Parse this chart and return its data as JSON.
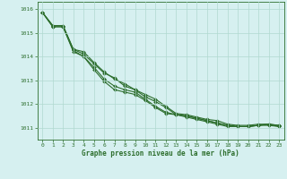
{
  "background_color": "#d6f0f0",
  "grid_color": "#b0d8d0",
  "line_color": "#2d6e2d",
  "xlabel": "Graphe pression niveau de la mer (hPa)",
  "ylim": [
    1010.5,
    1016.3
  ],
  "xlim": [
    -0.5,
    23.5
  ],
  "yticks": [
    1011,
    1012,
    1013,
    1014,
    1015,
    1016
  ],
  "xticks": [
    0,
    1,
    2,
    3,
    4,
    5,
    6,
    7,
    8,
    9,
    10,
    11,
    12,
    13,
    14,
    15,
    16,
    17,
    18,
    19,
    20,
    21,
    22,
    23
  ],
  "series": [
    [
      1015.85,
      1015.3,
      1015.3,
      1014.3,
      1014.2,
      1013.75,
      1013.35,
      1013.05,
      1012.85,
      1012.6,
      1012.4,
      1012.2,
      1011.9,
      1011.6,
      1011.55,
      1011.45,
      1011.35,
      1011.3,
      1011.15,
      1011.1,
      1011.1,
      1011.15,
      1011.15,
      1011.1
    ],
    [
      1015.85,
      1015.3,
      1015.3,
      1014.3,
      1014.1,
      1013.7,
      1013.3,
      1013.1,
      1012.75,
      1012.6,
      1012.3,
      1012.1,
      1011.85,
      1011.55,
      1011.5,
      1011.4,
      1011.3,
      1011.2,
      1011.1,
      1011.05,
      1011.05,
      1011.1,
      1011.1,
      1011.05
    ],
    [
      1015.85,
      1015.25,
      1015.25,
      1014.25,
      1014.0,
      1013.55,
      1013.05,
      1012.75,
      1012.6,
      1012.5,
      1012.2,
      1011.9,
      1011.65,
      1011.55,
      1011.5,
      1011.4,
      1011.3,
      1011.2,
      1011.1,
      1011.05,
      1011.05,
      1011.1,
      1011.15,
      1011.1
    ],
    [
      1015.85,
      1015.25,
      1015.25,
      1014.2,
      1014.0,
      1013.45,
      1012.95,
      1012.6,
      1012.5,
      1012.4,
      1012.15,
      1011.85,
      1011.6,
      1011.55,
      1011.45,
      1011.35,
      1011.25,
      1011.15,
      1011.05,
      1011.05,
      1011.05,
      1011.1,
      1011.15,
      1011.05
    ]
  ]
}
